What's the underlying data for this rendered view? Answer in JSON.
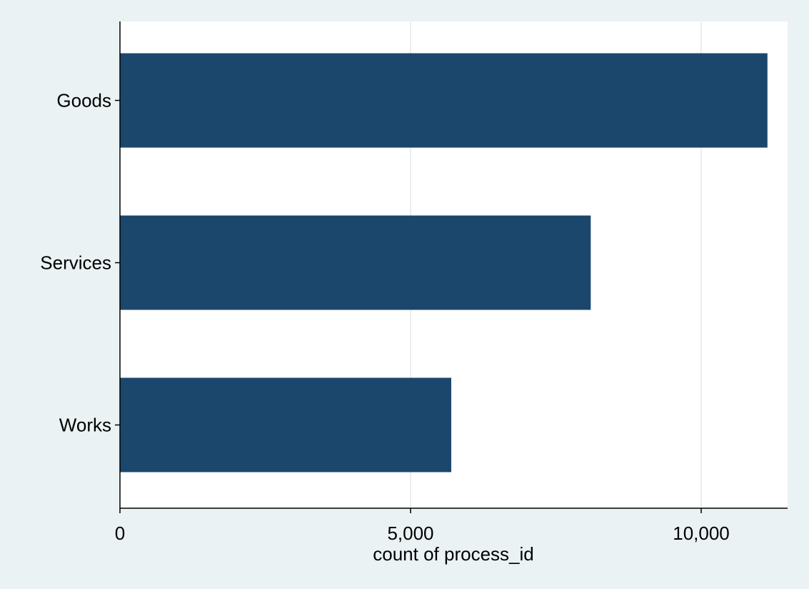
{
  "chart_data": {
    "type": "bar",
    "orientation": "horizontal",
    "title": "",
    "xlabel": "count of process_id",
    "ylabel": "",
    "categories": [
      "Goods",
      "Services",
      "Works"
    ],
    "values": [
      11140,
      8100,
      5700
    ],
    "xlim": [
      0,
      11500
    ],
    "xticks": [
      0,
      5000,
      10000
    ],
    "xtick_labels": [
      "0",
      "5,000",
      "10,000"
    ],
    "grid": "vertical lines at x ticks",
    "legend": "none",
    "colors": {
      "bar": "#1c476c",
      "plot_background": "#ffffff",
      "outer_background": "#eaf2f3",
      "gridline": "#e8eeef",
      "axis": "#000000"
    }
  }
}
